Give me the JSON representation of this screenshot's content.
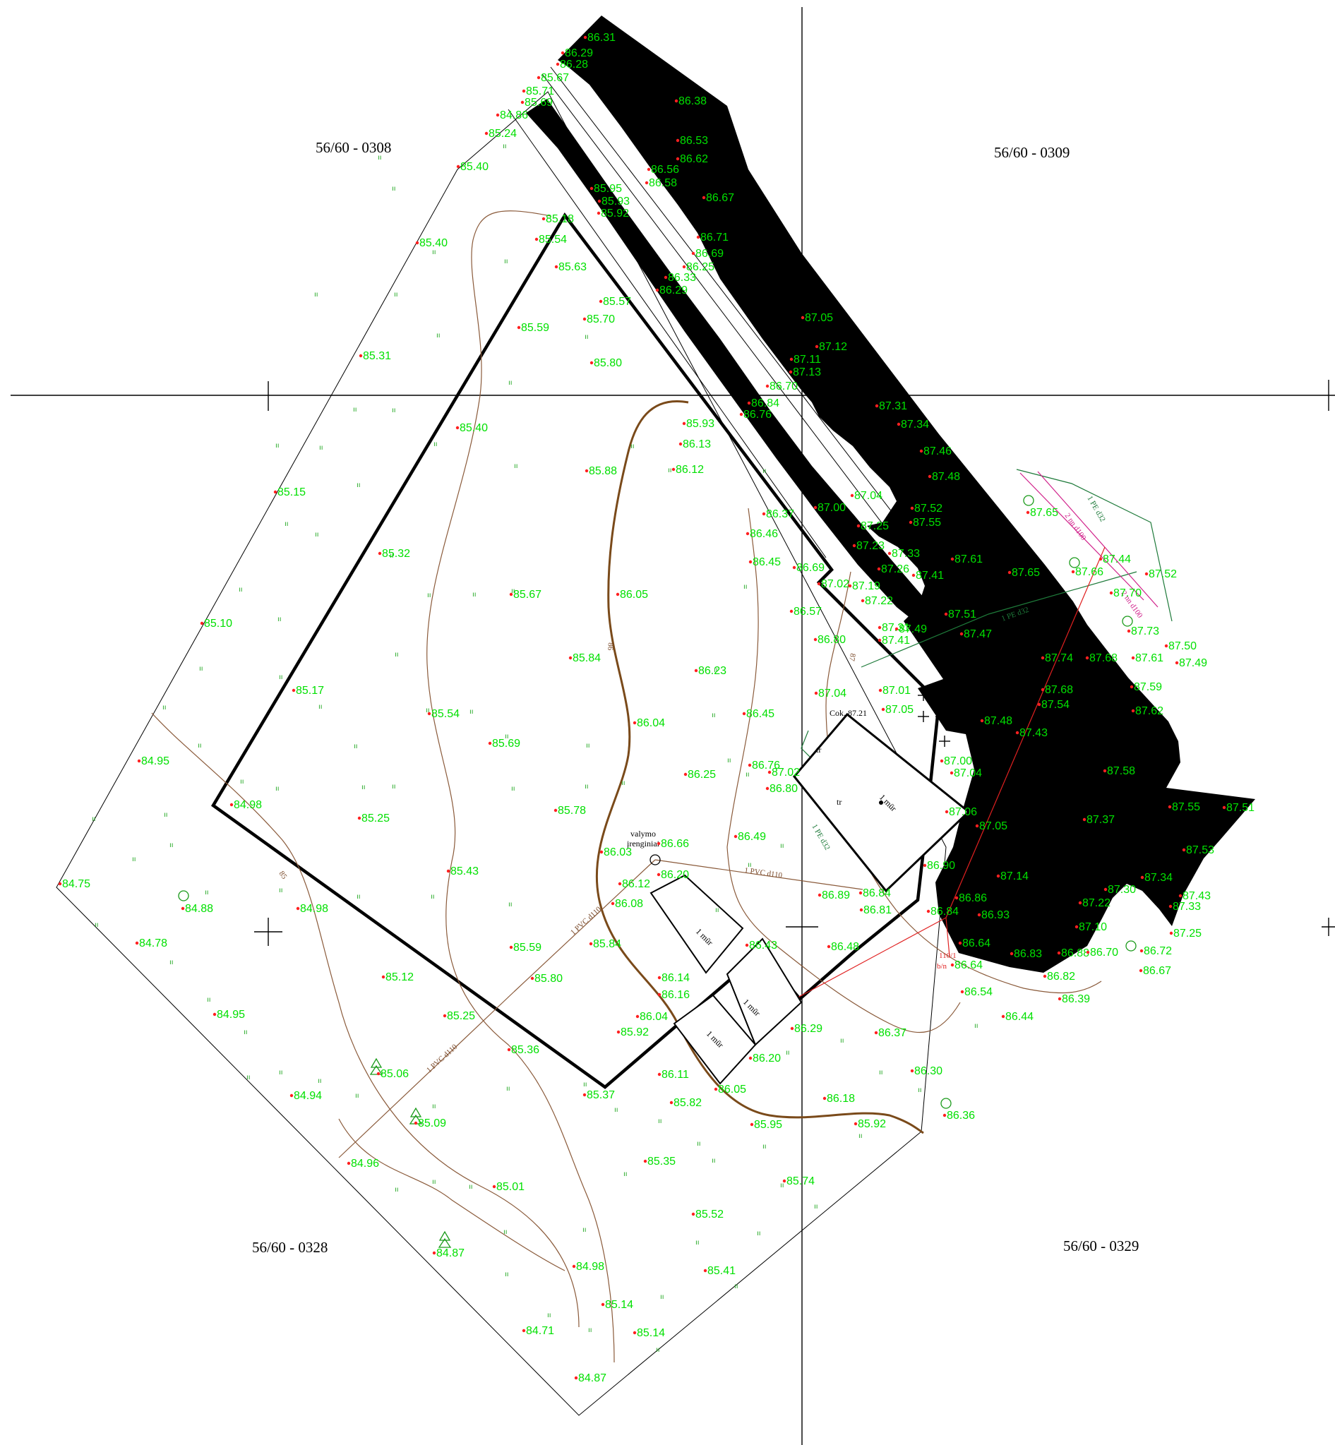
{
  "colors": {
    "elevation_text": "#00e000",
    "survey_point": "#ff2020",
    "contour": "#8a5a3a",
    "main_contour": "#7a4a1a",
    "boundary": "#000000",
    "road": "#000000",
    "gas_pipe": "#d0208a",
    "water_pipe": "#1e7a3a",
    "electric": "#e02020"
  },
  "sheet_labels": [
    "56/60 - 0308",
    "56/60 - 0309",
    "56/60 - 0328",
    "56/60 - 0329"
  ],
  "annotations": {
    "valve_label_1": "valymo",
    "valve_label_2": "įrenginiai",
    "cok": "Cok. 87.21",
    "tr_1": "tr",
    "tr_2": "tr",
    "tr_3": "tr",
    "house_small": "1 mūr",
    "house_1": "1 mūr",
    "house_2": "1 mūr",
    "house_3": "1 mūr",
    "pipe_pvc_1": "1 PVC d110",
    "pipe_pvc_2": "1 PVC d110",
    "pipe_pvc_3": "1 PVC d110",
    "pipe_pe_1": "1 PE d32",
    "pipe_pe_2": "1 PE d32",
    "pipe_pe_3": "1 PE d32",
    "gas_1": "2 nn d100",
    "gas_2": "2 nn d100",
    "contour_85": "85",
    "contour_86": "86",
    "contour_87": "87",
    "ref_110": "110/1",
    "bn": "b/n"
  },
  "elevations": [
    "86.31",
    "86.29",
    "86.28",
    "85.67",
    "85.71",
    "85.69",
    "84.86",
    "85.24",
    "85.40",
    "86.38",
    "86.53",
    "86.62",
    "86.56",
    "86.58",
    "86.67",
    "85.95",
    "85.93",
    "85.92",
    "85.18",
    "85.54",
    "85.40",
    "86.71",
    "86.69",
    "86.25",
    "85.63",
    "86.33",
    "86.29",
    "85.57",
    "85.70",
    "85.59",
    "87.05",
    "87.12",
    "87.11",
    "87.13",
    "85.31",
    "85.80",
    "86.70",
    "86.84",
    "86.76",
    "87.31",
    "87.34",
    "85.93",
    "86.13",
    "85.40",
    "87.46",
    "85.88",
    "86.12",
    "87.48",
    "85.15",
    "87.04",
    "87.00",
    "87.52",
    "87.55",
    "86.37",
    "87.65",
    "86.46",
    "87.25",
    "87.23",
    "87.33",
    "85.32",
    "86.45",
    "86.69",
    "87.26",
    "87.61",
    "87.65",
    "87.66",
    "87.44",
    "87.52",
    "87.41",
    "87.02",
    "87.19",
    "87.22",
    "87.70",
    "85.67",
    "86.05",
    "86.57",
    "87.51",
    "87.31",
    "87.49",
    "87.47",
    "85.10",
    "86.80",
    "87.41",
    "87.73",
    "87.50",
    "85.84",
    "86.23",
    "87.74",
    "87.68",
    "87.61",
    "87.49",
    "85.17",
    "87.04",
    "87.01",
    "87.68",
    "87.59",
    "87.54",
    "87.05",
    "85.54",
    "86.45",
    "87.62",
    "87.48",
    "87.43",
    "85.69",
    "86.04",
    "84.95",
    "87.00",
    "86.76",
    "87.02",
    "87.58",
    "86.25",
    "86.80",
    "87.04",
    "84.98",
    "85.78",
    "85.25",
    "87.06",
    "87.05",
    "87.37",
    "87.55",
    "87.51",
    "86.49",
    "86.66",
    "86.03",
    "87.53",
    "86.90",
    "85.43",
    "86.12",
    "86.20",
    "87.14",
    "84.75",
    "86.89",
    "86.84",
    "87.34",
    "87.30",
    "87.43",
    "84.88",
    "84.98",
    "86.08",
    "86.81",
    "86.86",
    "86.84",
    "86.93",
    "87.22",
    "87.33",
    "84.78",
    "85.84",
    "86.43",
    "87.10",
    "87.25",
    "85.59",
    "86.48",
    "86.64",
    "86.83",
    "86.88",
    "86.70",
    "86.72",
    "85.80",
    "86.64",
    "86.67",
    "86.14",
    "85.12",
    "86.16",
    "86.54",
    "86.82",
    "86.39",
    "84.95",
    "86.04",
    "85.25",
    "86.44",
    "85.92",
    "86.29",
    "86.37",
    "85.36",
    "86.20",
    "85.06",
    "86.30",
    "84.94",
    "86.11",
    "86.05",
    "85.37",
    "86.18",
    "85.82",
    "86.36",
    "85.09",
    "85.95",
    "85.92",
    "84.96",
    "85.35",
    "85.74",
    "85.01",
    "85.52",
    "84.87",
    "84.98",
    "85.41",
    "85.14",
    "84.71",
    "85.14",
    "84.87"
  ]
}
